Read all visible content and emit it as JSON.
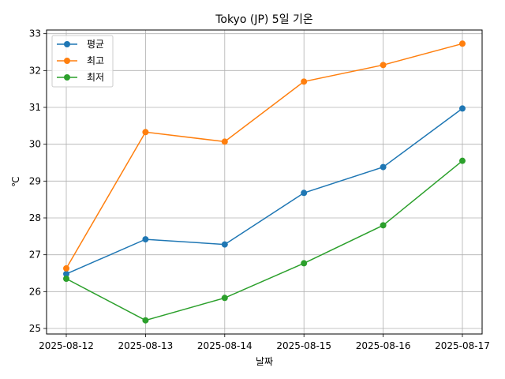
{
  "chart_data": {
    "type": "line",
    "title": "Tokyo (JP) 5일 기온",
    "xlabel": "날짜",
    "ylabel": "℃",
    "categories": [
      "2025-08-12",
      "2025-08-13",
      "2025-08-14",
      "2025-08-15",
      "2025-08-16",
      "2025-08-17"
    ],
    "series": [
      {
        "name": "평균",
        "color": "#1f77b4",
        "values": [
          26.48,
          27.42,
          27.28,
          28.68,
          29.38,
          30.97
        ]
      },
      {
        "name": "최고",
        "color": "#ff7f0e",
        "values": [
          26.63,
          30.33,
          30.07,
          31.7,
          32.15,
          32.73
        ]
      },
      {
        "name": "최저",
        "color": "#2ca02c",
        "values": [
          26.35,
          25.22,
          25.83,
          26.77,
          27.8,
          29.55
        ]
      }
    ],
    "ylim": [
      24.85,
      33.1
    ],
    "yticks": [
      25,
      26,
      27,
      28,
      29,
      30,
      31,
      32,
      33
    ],
    "grid": true,
    "legend_position": "top-left"
  }
}
